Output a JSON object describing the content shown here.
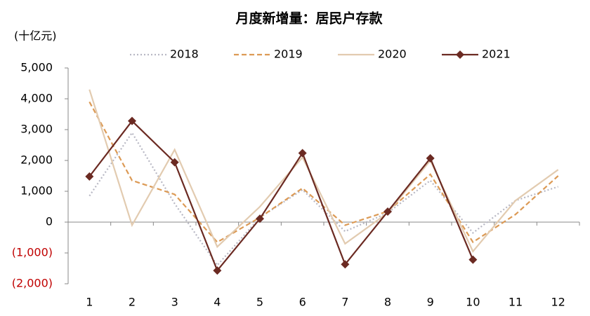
{
  "chart_data": {
    "type": "line",
    "title": "月度新增量：居民户存款",
    "y_axis_label": "(十亿元)",
    "categories": [
      "1",
      "2",
      "3",
      "4",
      "5",
      "6",
      "7",
      "8",
      "9",
      "10",
      "11",
      "12"
    ],
    "ylim": [
      -2000,
      5000
    ],
    "yticks": [
      {
        "value": -2000,
        "label": "(2,000)"
      },
      {
        "value": -1000,
        "label": "(1,000)"
      },
      0,
      {
        "value": 1000,
        "label": "1,000"
      },
      {
        "value": 2000,
        "label": "2,000"
      },
      {
        "value": 3000,
        "label": "3,000"
      },
      {
        "value": 4000,
        "label": "4,000"
      },
      {
        "value": 5000,
        "label": "5,000"
      }
    ],
    "negative_label_color": "#c00000",
    "legend": "top",
    "series": [
      {
        "name": "2018",
        "color": "#b8b8c4",
        "line_style": "dotted",
        "values": [
          850,
          2900,
          600,
          -1400,
          150,
          1050,
          -300,
          300,
          1350,
          -350,
          700,
          1150
        ]
      },
      {
        "name": "2019",
        "color": "#dc9a55",
        "line_style": "dashed",
        "values": [
          3900,
          1350,
          900,
          -650,
          150,
          1100,
          -100,
          350,
          1550,
          -650,
          250,
          1500
        ]
      },
      {
        "name": "2020",
        "color": "#e2cbb0",
        "line_style": "solid",
        "values": [
          4300,
          -100,
          2350,
          -800,
          500,
          2100,
          -700,
          300,
          2000,
          -950,
          700,
          1700
        ]
      },
      {
        "name": "2021",
        "color": "#6b2a22",
        "line_style": "solid",
        "marker": "diamond",
        "values": [
          1480,
          3280,
          1940,
          -1570,
          110,
          2240,
          -1370,
          340,
          2070,
          -1220,
          null,
          null
        ]
      }
    ]
  }
}
